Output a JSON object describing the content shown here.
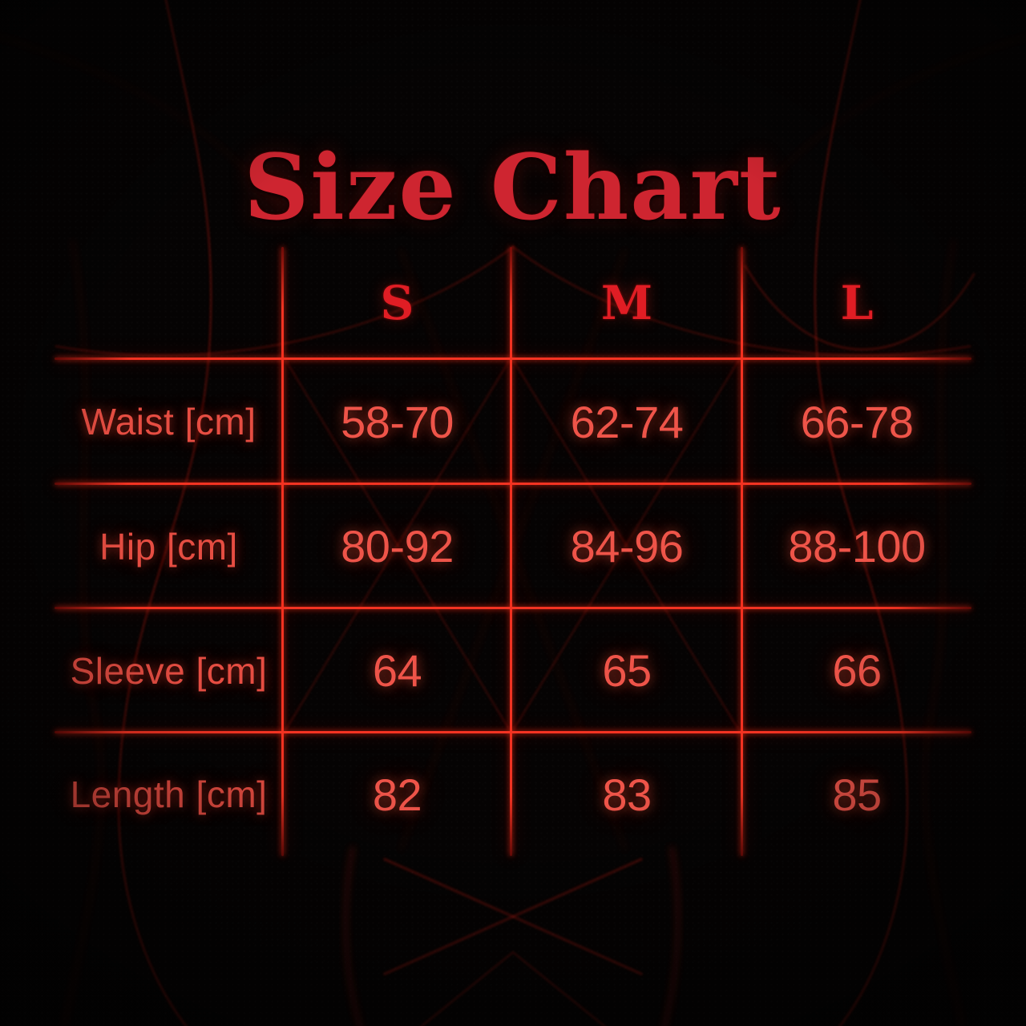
{
  "title": "Size Chart",
  "colors": {
    "background": "#050303",
    "grid_line": "#f23322",
    "title_text": "#ce2530",
    "header_text": "#e01d24",
    "label_text": "#e64d42",
    "value_text": "#ee5449"
  },
  "chart_data": {
    "type": "table",
    "title": "Size Chart",
    "columns": [
      "",
      "S",
      "M",
      "L"
    ],
    "rows": [
      {
        "label": "Waist [cm]",
        "values": [
          "58-70",
          "62-74",
          "66-78"
        ]
      },
      {
        "label": "Hip [cm]",
        "values": [
          "80-92",
          "84-96",
          "88-100"
        ]
      },
      {
        "label": "Sleeve [cm]",
        "values": [
          "64",
          "65",
          "66"
        ]
      },
      {
        "label": "Length [cm]",
        "values": [
          "82",
          "83",
          "85"
        ]
      }
    ]
  }
}
